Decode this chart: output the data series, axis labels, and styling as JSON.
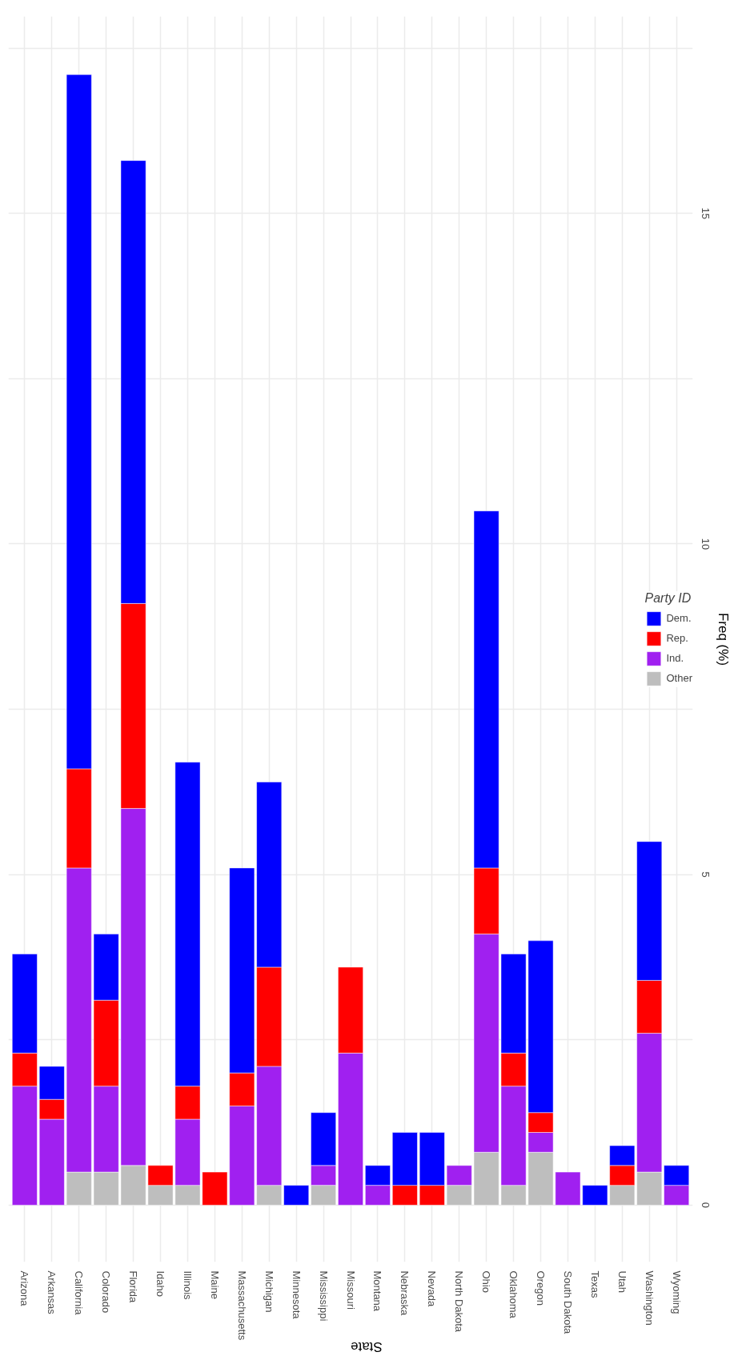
{
  "chart_data": {
    "type": "bar",
    "stacked": true,
    "xlabel": "State",
    "ylabel": "Freq (%)",
    "legend_title": "Party ID",
    "legend": "right",
    "grid": true,
    "categories": [
      "Arizona",
      "Arkansas",
      "California",
      "Colorado",
      "Florida",
      "Idaho",
      "Illinois",
      "Maine",
      "Massachusetts",
      "Michigan",
      "Minnesota",
      "Mississippi",
      "Missouri",
      "Montana",
      "Nebraska",
      "Nevada",
      "North Dakota",
      "Ohio",
      "Oklahoma",
      "Oregon",
      "South Dakota",
      "Texas",
      "Utah",
      "Washington",
      "Wyoming"
    ],
    "series": [
      {
        "name": "Other",
        "color": "#bebebe",
        "values": [
          null,
          null,
          0.5,
          0.5,
          0.6,
          0.3,
          0.3,
          null,
          null,
          0.3,
          null,
          0.3,
          null,
          null,
          null,
          null,
          0.3,
          0.8,
          0.3,
          0.8,
          null,
          null,
          0.3,
          0.5,
          null
        ]
      },
      {
        "name": "Ind.",
        "color": "#a020f0",
        "values": [
          1.8,
          1.3,
          4.6,
          1.3,
          5.4,
          null,
          1.0,
          null,
          1.5,
          1.8,
          null,
          0.3,
          2.3,
          0.3,
          null,
          null,
          0.3,
          3.3,
          1.5,
          0.3,
          0.5,
          null,
          null,
          2.1,
          0.3
        ]
      },
      {
        "name": "Rep.",
        "color": "#ff0000",
        "values": [
          0.5,
          0.3,
          1.5,
          1.3,
          3.1,
          0.3,
          0.5,
          0.5,
          0.5,
          1.5,
          null,
          null,
          1.3,
          null,
          0.3,
          0.3,
          null,
          1.0,
          0.5,
          0.3,
          null,
          null,
          0.3,
          0.8,
          null
        ]
      },
      {
        "name": "Dem.",
        "color": "#0000ff",
        "values": [
          1.5,
          0.5,
          10.5,
          1.0,
          6.7,
          null,
          4.9,
          null,
          3.1,
          2.8,
          0.3,
          0.8,
          null,
          0.3,
          0.8,
          0.8,
          null,
          5.4,
          1.5,
          2.6,
          null,
          0.3,
          0.3,
          2.1,
          0.3
        ]
      }
    ],
    "ylim": [
      -0.86,
      17.98
    ],
    "yticks": [
      0,
      {
        "value": 2.5,
        "label": null
      },
      5,
      {
        "value": 7.5,
        "label": null
      },
      10,
      {
        "value": 12.5,
        "label": null
      },
      15,
      {
        "value": 17.5,
        "label": null
      }
    ]
  }
}
